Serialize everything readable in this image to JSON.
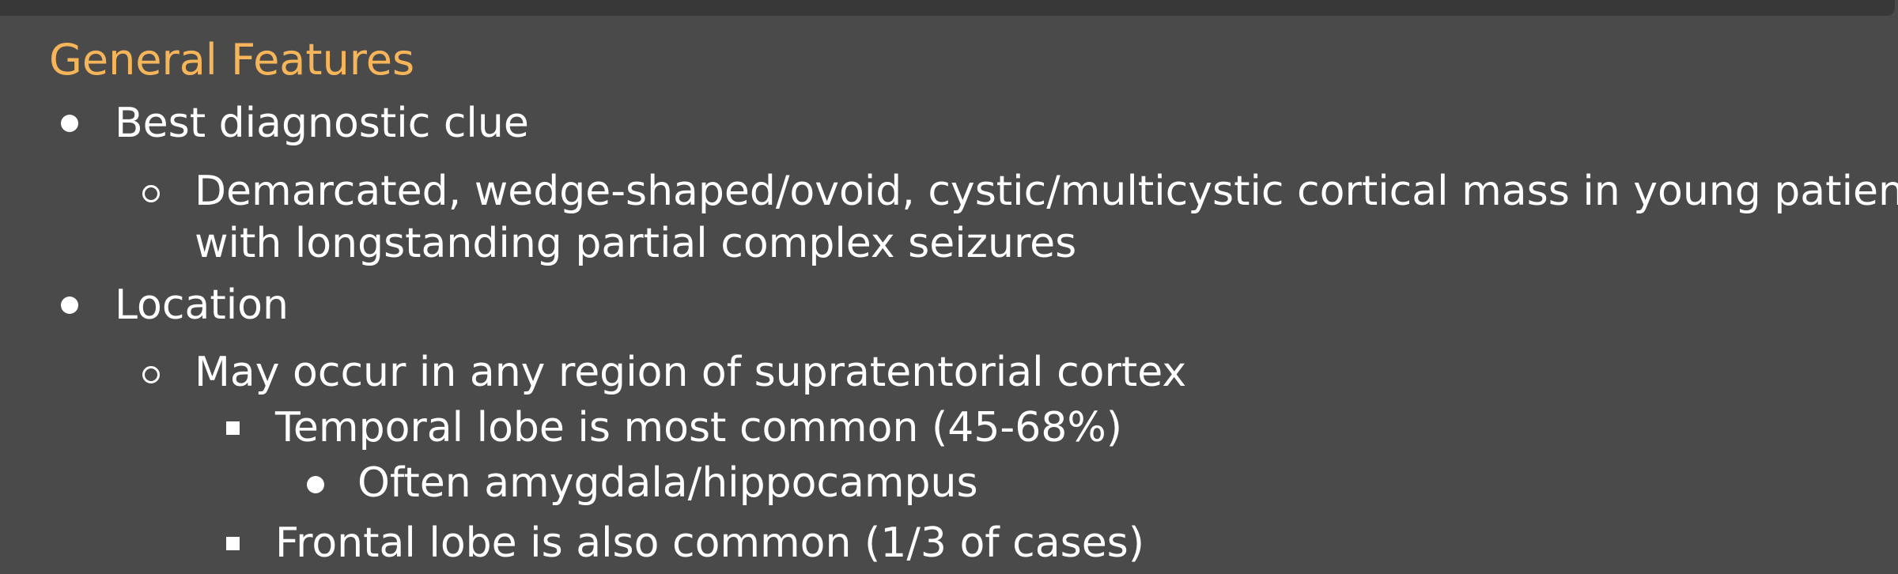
{
  "section": {
    "title": "General Features"
  },
  "outline": {
    "item1": {
      "label": "Best diagnostic clue",
      "sub1_line1": "Demarcated, wedge-shaped/ovoid, cystic/multicystic cortical mass in young patients",
      "sub1_line2": "with longstanding partial complex seizures"
    },
    "item2": {
      "label": "Location",
      "sub1": "May occur in any region of supratentorial cortex",
      "sub1_a": "Temporal lobe is most common (45-68%)",
      "sub1_a_i": "Often amygdala/hippocampus",
      "sub1_b": "Frontal lobe is also common (1/3 of cases)"
    }
  }
}
